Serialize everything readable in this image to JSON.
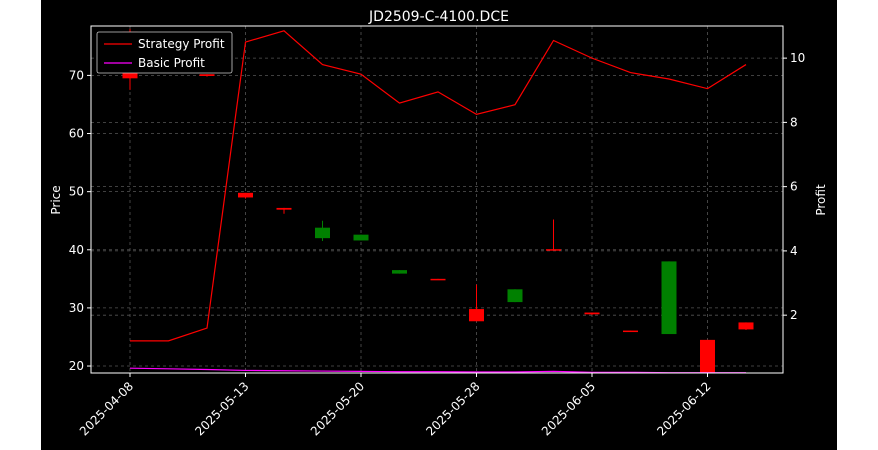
{
  "chart_data": {
    "type": "candlestick+line",
    "title": "JD2509-C-4100.DCE",
    "ylabel_left": "Price",
    "ylabel_right": "Profit",
    "ylim_left": [
      18.8,
      78.5
    ],
    "ylim_right": [
      0.2,
      11.0
    ],
    "yticks_left": [
      20,
      30,
      40,
      50,
      60,
      70
    ],
    "yticks_right": [
      2,
      4,
      6,
      8,
      10
    ],
    "x_tick_labels": [
      "2025-04-08",
      "2025-05-13",
      "2025-05-20",
      "2025-05-28",
      "2025-06-05",
      "2025-06-12"
    ],
    "x_tick_index": [
      0,
      3,
      6,
      9,
      12,
      15
    ],
    "x_count": 17,
    "grid": true,
    "legend_position": "top-left",
    "colors": {
      "background": "#000000",
      "frame": "#ffffff",
      "grid": "#555555",
      "up": "#008000",
      "down": "#ff0000",
      "strategy": "#ff0000",
      "basic": "#ff00ff"
    },
    "candles": [
      {
        "o": 77.5,
        "h": 78.0,
        "l": 67.5,
        "c": 69.5
      },
      {
        "o": 72.5,
        "h": 72.5,
        "l": 72.5,
        "c": 72.5
      },
      {
        "o": 70.2,
        "h": 70.2,
        "l": 69.8,
        "c": 69.9
      },
      {
        "o": 49.8,
        "h": 49.8,
        "l": 48.8,
        "c": 49.0
      },
      {
        "o": 47.2,
        "h": 47.2,
        "l": 46.2,
        "c": 46.9
      },
      {
        "o": 42.0,
        "h": 45.0,
        "l": 41.5,
        "c": 43.8
      },
      {
        "o": 41.6,
        "h": 42.6,
        "l": 41.6,
        "c": 42.6
      },
      {
        "o": 35.9,
        "h": 36.5,
        "l": 35.9,
        "c": 36.5
      },
      {
        "o": 35.0,
        "h": 35.0,
        "l": 34.8,
        "c": 34.9
      },
      {
        "o": 29.8,
        "h": 34.0,
        "l": 27.7,
        "c": 27.7
      },
      {
        "o": 31.0,
        "h": 33.2,
        "l": 31.0,
        "c": 33.2
      },
      {
        "o": 40.1,
        "h": 45.2,
        "l": 39.9,
        "c": 40.0
      },
      {
        "o": 29.2,
        "h": 29.2,
        "l": 28.8,
        "c": 28.9
      },
      {
        "o": 26.1,
        "h": 26.1,
        "l": 25.9,
        "c": 26.0
      },
      {
        "o": 25.5,
        "h": 38.0,
        "l": 25.5,
        "c": 38.0
      },
      {
        "o": 24.5,
        "h": 24.5,
        "l": 18.8,
        "c": 18.8
      },
      {
        "o": 27.5,
        "h": 27.5,
        "l": 26.2,
        "c": 26.3
      }
    ],
    "series": [
      {
        "name": "Strategy Profit",
        "color": "#ff0000",
        "values": [
          1.2,
          1.2,
          1.6,
          10.5,
          10.85,
          9.8,
          9.5,
          8.6,
          8.95,
          8.25,
          8.55,
          10.55,
          10.0,
          9.55,
          9.35,
          9.05,
          9.8
        ]
      },
      {
        "name": "Basic Profit",
        "color": "#ff00ff",
        "values": [
          0.35,
          0.33,
          0.31,
          0.28,
          0.27,
          0.26,
          0.25,
          0.24,
          0.24,
          0.23,
          0.23,
          0.25,
          0.22,
          0.22,
          0.21,
          0.21,
          0.21
        ]
      }
    ]
  }
}
